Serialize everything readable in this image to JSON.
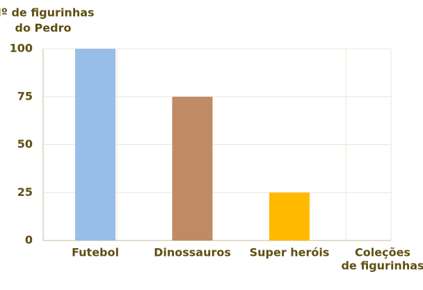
{
  "chart_data": {
    "type": "bar",
    "ylabel": [
      "Nº de figurinhas",
      "do Pedro"
    ],
    "xlabel": [
      "Coleções",
      "de figurinhas"
    ],
    "categories": [
      "Futebol",
      "Dinossauros",
      "Super heróis"
    ],
    "values": [
      100,
      75,
      25
    ],
    "colors": [
      "#97bde8",
      "#bf8b65",
      "#ffba00"
    ],
    "ylim": [
      0,
      100
    ],
    "yticks": [
      0,
      25,
      50,
      75,
      100
    ],
    "grid": true
  }
}
